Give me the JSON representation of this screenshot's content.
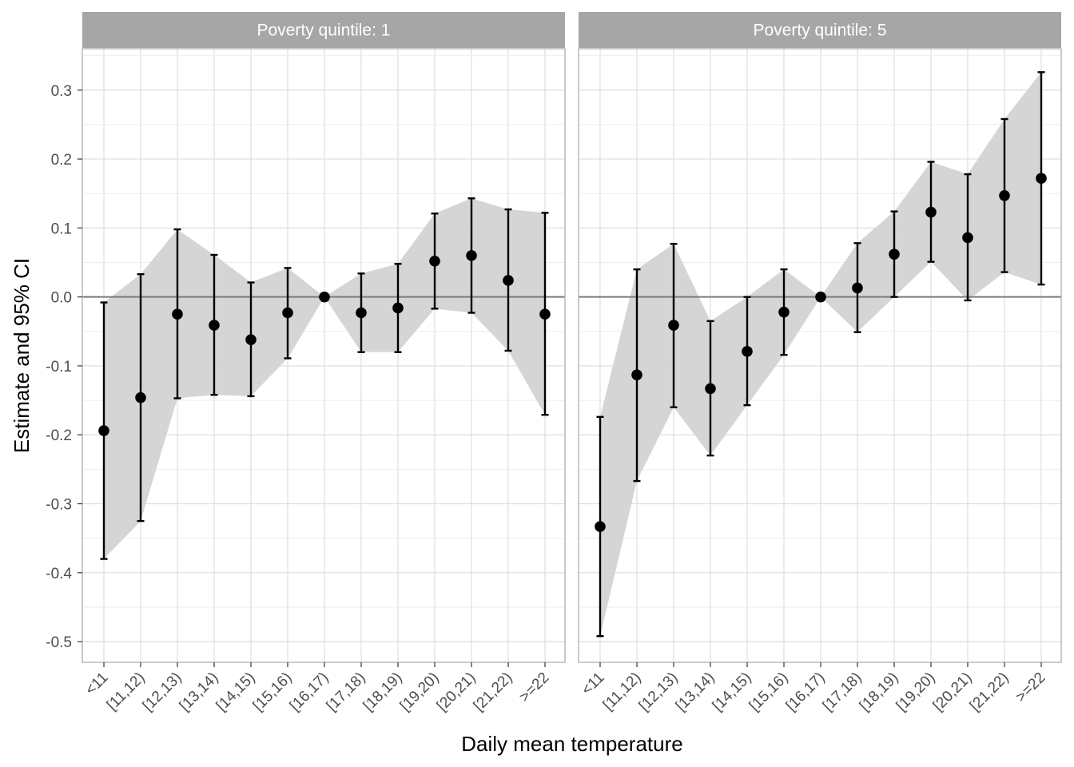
{
  "chart_data": {
    "type": "scatter",
    "subtype": "point-errorbar-ribbon-faceted",
    "xlabel": "Daily mean temperature",
    "ylabel": "Estimate and 95% CI",
    "categories": [
      "<11",
      "[11,12)",
      "[12,13)",
      "[13,14)",
      "[14,15)",
      "[15,16)",
      "[16,17)",
      "[17,18)",
      "[18,19)",
      "[19,20)",
      "[20,21)",
      "[21,22)",
      ">=22"
    ],
    "ylim": [
      -0.53,
      0.36
    ],
    "yticks": [
      0.3,
      0.2,
      0.1,
      0.0,
      -0.1,
      -0.2,
      -0.3,
      -0.4,
      -0.5
    ],
    "ytick_labels": [
      "0.3",
      "0.2",
      "0.1",
      "0.0",
      "-0.1",
      "-0.2",
      "-0.3",
      "-0.4",
      "-0.5"
    ],
    "reference_line": 0,
    "grid": true,
    "colors": {
      "ribbon": "#d3d3d3",
      "points": "#000000",
      "strip": "#a6a6a6",
      "panel_border": "#b3b3b3",
      "grid_major": "#dedede",
      "grid_minor": "#eeeeee",
      "reference_line": "#7a7a7a"
    },
    "facets": [
      {
        "label": "Poverty quintile: 1",
        "estimate": [
          -0.194,
          -0.146,
          -0.025,
          -0.041,
          -0.062,
          -0.023,
          0.0,
          -0.023,
          -0.016,
          0.052,
          0.06,
          0.024,
          -0.025
        ],
        "lower": [
          -0.38,
          -0.325,
          -0.147,
          -0.142,
          -0.144,
          -0.089,
          0.0,
          -0.08,
          -0.08,
          -0.017,
          -0.023,
          -0.078,
          -0.171
        ],
        "upper": [
          -0.008,
          0.033,
          0.098,
          0.061,
          0.021,
          0.042,
          0.0,
          0.034,
          0.048,
          0.121,
          0.143,
          0.127,
          0.122
        ]
      },
      {
        "label": "Poverty quintile: 5",
        "estimate": [
          -0.333,
          -0.113,
          -0.041,
          -0.133,
          -0.079,
          -0.022,
          0.0,
          0.013,
          0.062,
          0.123,
          0.086,
          0.147,
          0.172
        ],
        "lower": [
          -0.492,
          -0.267,
          -0.16,
          -0.23,
          -0.157,
          -0.084,
          0.0,
          -0.051,
          0.0,
          0.051,
          -0.005,
          0.036,
          0.018
        ],
        "upper": [
          -0.174,
          0.04,
          0.077,
          -0.035,
          0.0,
          0.04,
          0.0,
          0.078,
          0.124,
          0.196,
          0.178,
          0.258,
          0.326
        ]
      }
    ]
  }
}
